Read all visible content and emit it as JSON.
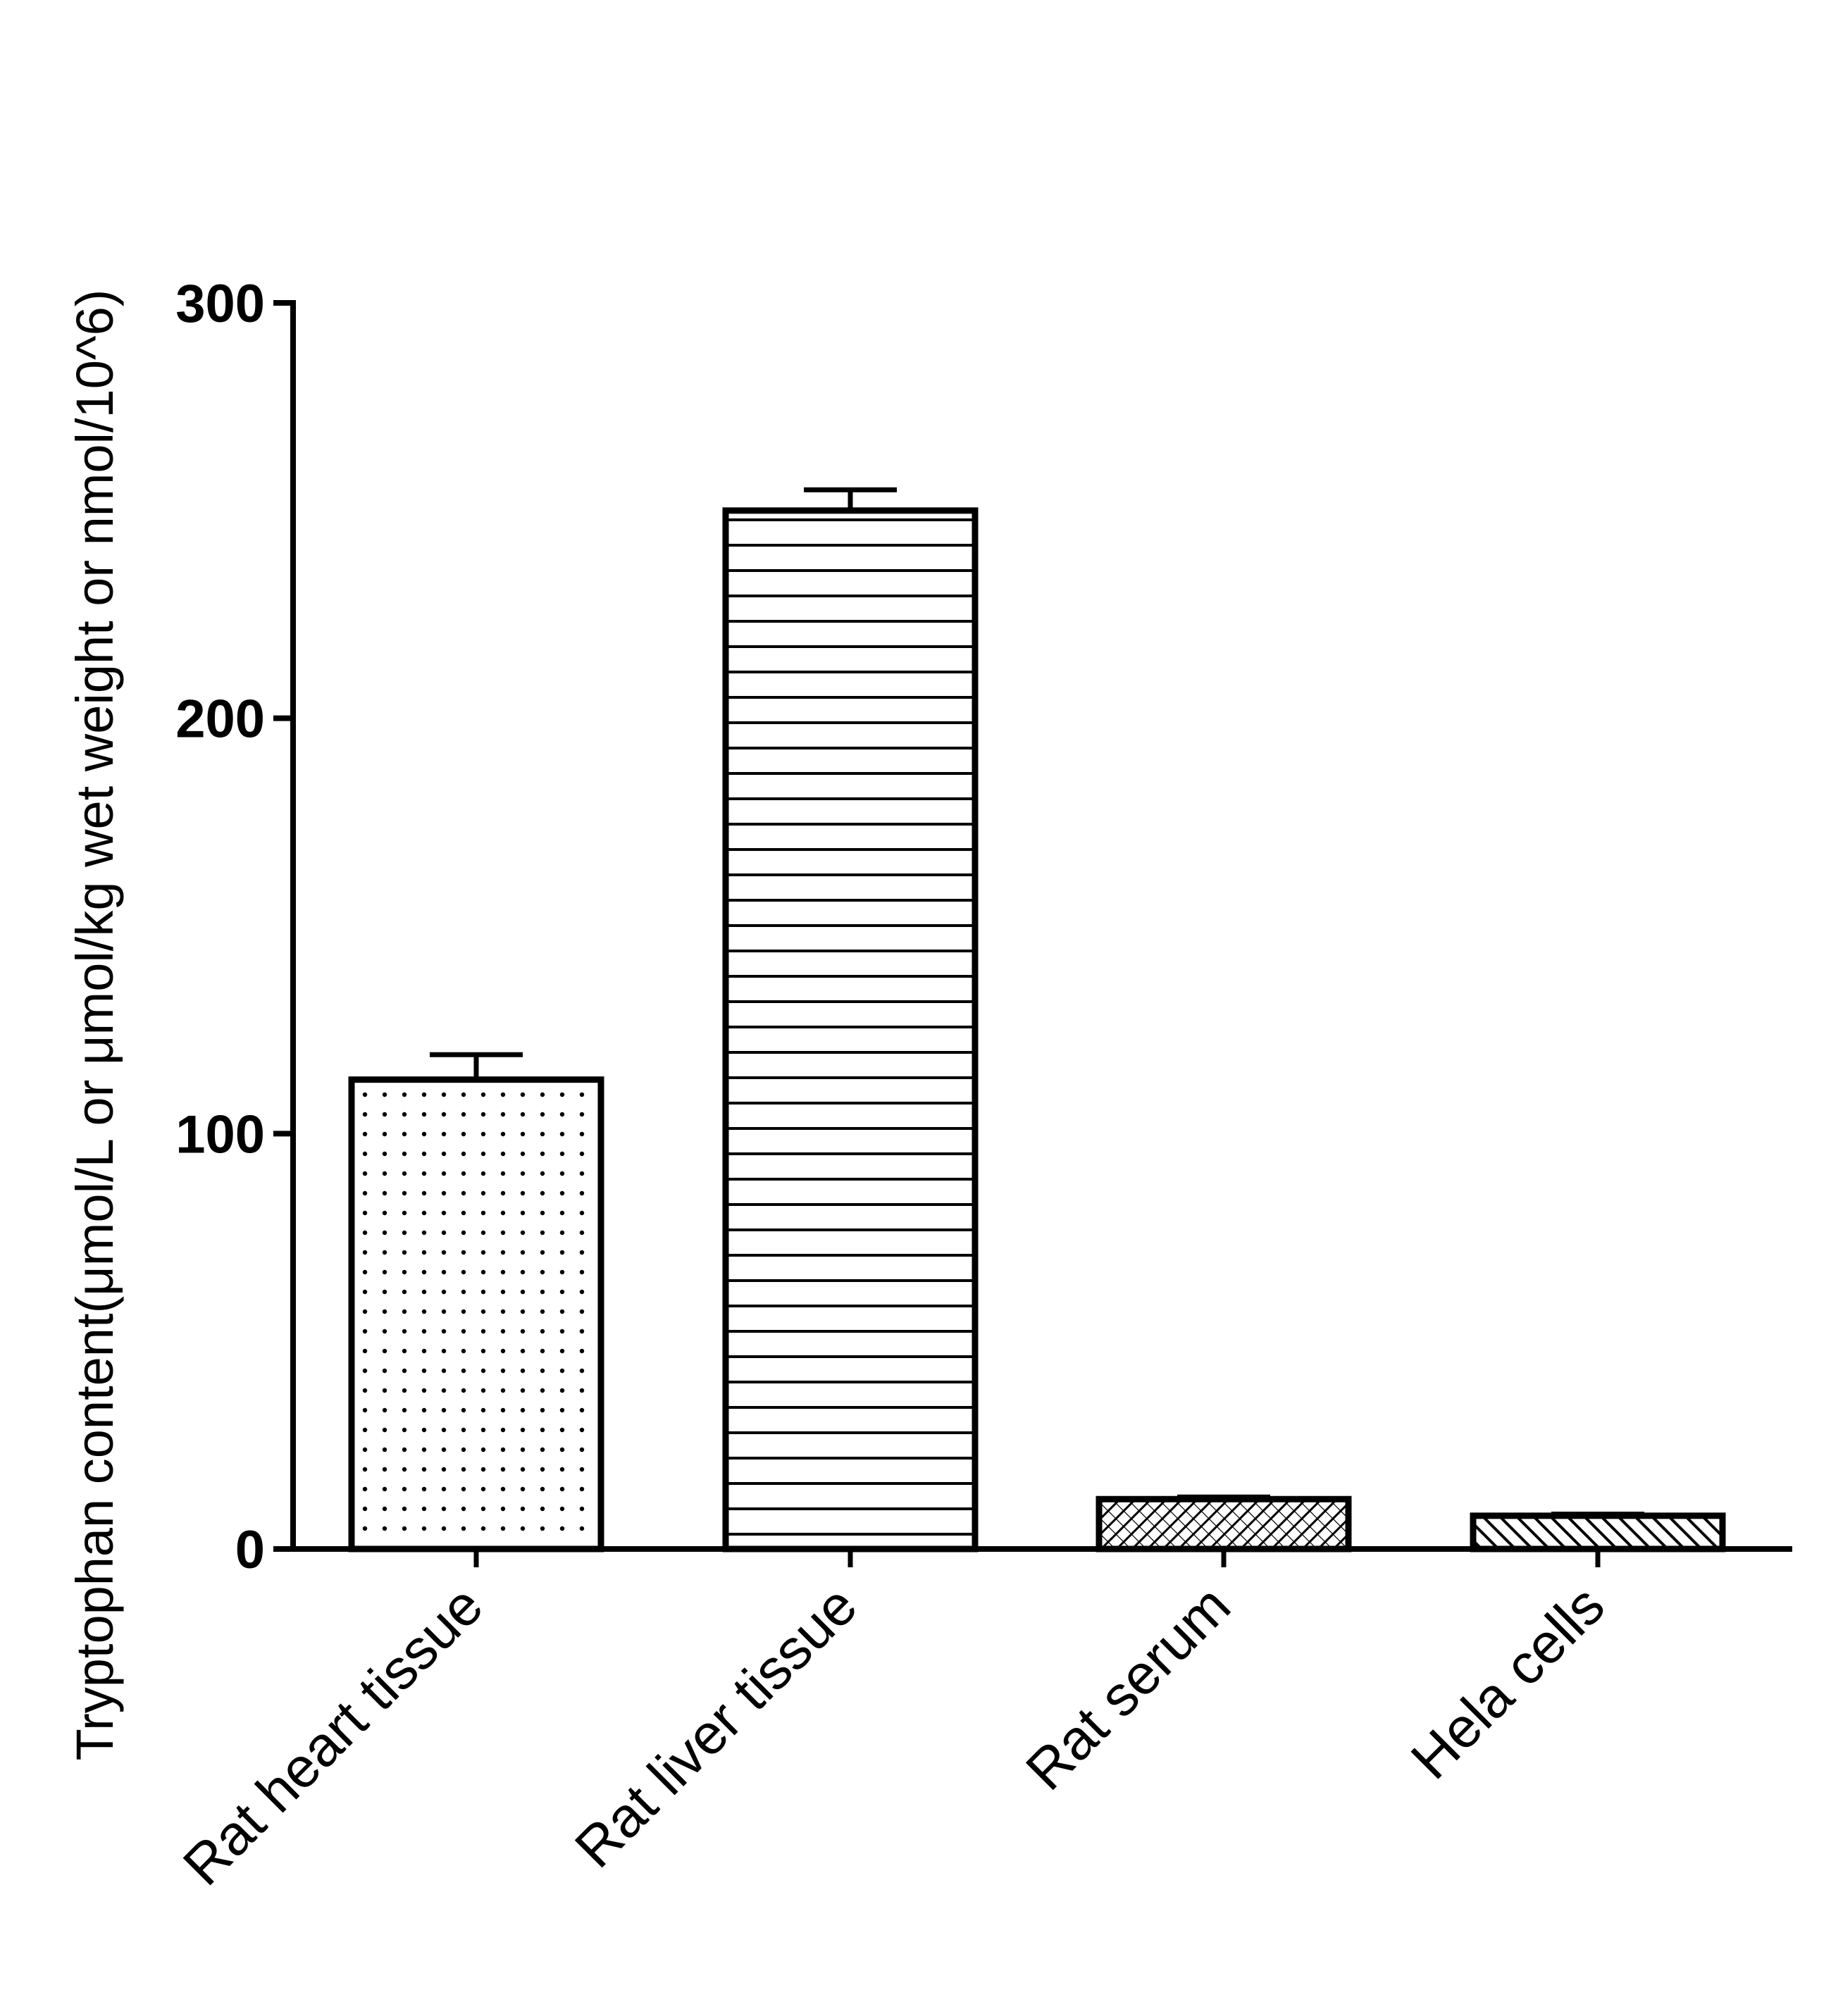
{
  "chart_data": {
    "type": "bar",
    "title": "",
    "xlabel": "",
    "ylabel": "Tryptophan content(μmol/L or μmol/kg wet weight or nmol/10^6)",
    "categories": [
      "Rat heart tissue",
      "Rat liver tissue",
      "Rat serum",
      "Hela cells"
    ],
    "values": [
      113,
      250,
      12,
      8
    ],
    "errors": [
      6,
      5,
      0.5,
      0.4
    ],
    "ylim": [
      0,
      300
    ],
    "yticks": [
      0,
      100,
      200,
      300
    ],
    "yticks_labels": [
      "0",
      "100",
      "200",
      "300"
    ],
    "fill_patterns": [
      "dots",
      "horizontal-lines",
      "crosshatch",
      "diagonal-lines"
    ],
    "grid": false,
    "legend": "none",
    "colors": {
      "bar_stroke": "#000000",
      "bar_fill": "#ffffff"
    }
  }
}
